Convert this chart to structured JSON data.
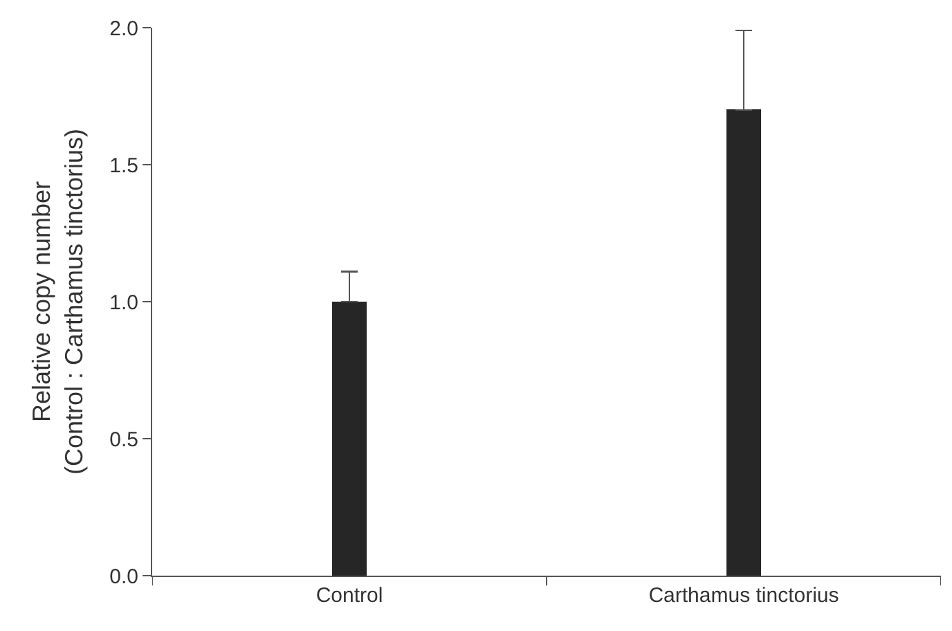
{
  "chart_data": {
    "type": "bar",
    "ylabel": "Relative copy number\n(Control : Carthamus tinctorius)",
    "categories": [
      "Control",
      "Carthamus tinctorius"
    ],
    "values": [
      1.0,
      1.7
    ],
    "errors": [
      [
        1.0,
        1.11
      ],
      [
        1.7,
        1.99
      ]
    ],
    "color": "#262626",
    "ylim": [
      0,
      2.0
    ],
    "yticks": [
      {
        "value": 0,
        "label": "0.0"
      },
      {
        "value": 0.5,
        "label": "0.5"
      },
      {
        "value": 1.0,
        "label": "1.0"
      },
      {
        "value": 1.5,
        "label": "1.5"
      },
      {
        "value": 2.0,
        "label": "2.0"
      }
    ]
  }
}
